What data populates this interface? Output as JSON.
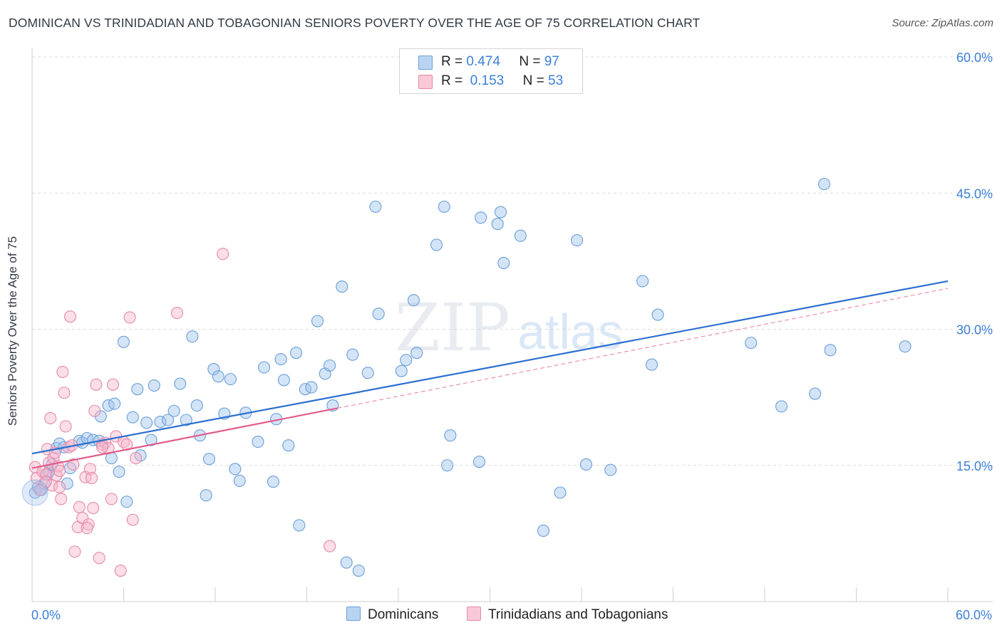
{
  "title": "DOMINICAN VS TRINIDADIAN AND TOBAGONIAN SENIORS POVERTY OVER THE AGE OF 75 CORRELATION CHART",
  "source": "Source: ZipAtlas.com",
  "watermark": {
    "zip": "ZIP",
    "atlas": "atlas"
  },
  "legend": {
    "rows": [
      {
        "r_label": "R =",
        "r_value": "0.474",
        "n_label": "N =",
        "n_value": "97",
        "color": "#9fc4ee",
        "border": "#6a9fd8"
      },
      {
        "r_label": "R =",
        "r_value": "0.153",
        "n_label": "N =",
        "n_value": "53",
        "color": "#f7b6cb",
        "border": "#e58aa8"
      }
    ]
  },
  "bottom_legend": [
    {
      "label": "Dominicans",
      "color": "#b9d4f3",
      "border": "#6a9fd8"
    },
    {
      "label": "Trinidadians and Tobagonians",
      "color": "#f9c9d8",
      "border": "#e58aa8"
    }
  ],
  "chart_data": {
    "type": "scatter",
    "title": "DOMINICAN VS TRINIDADIAN AND TOBAGONIAN SENIORS POVERTY OVER THE AGE OF 75 CORRELATION CHART",
    "xlabel": "",
    "ylabel": "Seniors Poverty Over the Age of 75",
    "xlim": [
      0,
      60
    ],
    "ylim": [
      0,
      60
    ],
    "x_tick_labels": [
      {
        "value": 0,
        "label": "0.0%"
      },
      {
        "value": 60,
        "label": "60.0%"
      }
    ],
    "y_tick_labels": [
      {
        "value": 15,
        "label": "15.0%"
      },
      {
        "value": 30,
        "label": "30.0%"
      },
      {
        "value": 45,
        "label": "45.0%"
      },
      {
        "value": 60,
        "label": "60.0%"
      }
    ],
    "series": [
      {
        "name": "Dominicans",
        "color": "#6a9fd8",
        "fill": "rgba(160,196,238,0.45)",
        "trend": {
          "x": [
            0,
            60
          ],
          "y": [
            16.3,
            35.3
          ],
          "style": "solid",
          "color": "#2b6fd0"
        },
        "points": [
          [
            0.2,
            12.0
          ],
          [
            0.4,
            12.6
          ],
          [
            0.6,
            12.3
          ],
          [
            0.8,
            13.0
          ],
          [
            1.0,
            14.0
          ],
          [
            1.1,
            14.3
          ],
          [
            1.3,
            15.1
          ],
          [
            1.6,
            16.9
          ],
          [
            1.8,
            17.4
          ],
          [
            2.1,
            17.0
          ],
          [
            2.3,
            13.0
          ],
          [
            2.5,
            14.7
          ],
          [
            3.1,
            17.7
          ],
          [
            3.3,
            17.5
          ],
          [
            3.6,
            18.0
          ],
          [
            4.0,
            17.8
          ],
          [
            4.4,
            17.7
          ],
          [
            4.5,
            20.4
          ],
          [
            5.0,
            21.6
          ],
          [
            5.2,
            15.8
          ],
          [
            5.4,
            21.8
          ],
          [
            5.7,
            14.3
          ],
          [
            6.0,
            28.6
          ],
          [
            6.2,
            11.0
          ],
          [
            6.6,
            20.3
          ],
          [
            6.9,
            23.4
          ],
          [
            7.1,
            16.1
          ],
          [
            7.5,
            19.7
          ],
          [
            7.8,
            17.8
          ],
          [
            8.0,
            23.8
          ],
          [
            8.4,
            19.8
          ],
          [
            8.9,
            20.0
          ],
          [
            9.3,
            21.0
          ],
          [
            9.7,
            24.0
          ],
          [
            10.1,
            20.0
          ],
          [
            10.5,
            29.2
          ],
          [
            10.8,
            21.6
          ],
          [
            11.0,
            18.3
          ],
          [
            11.4,
            11.7
          ],
          [
            11.6,
            15.7
          ],
          [
            11.9,
            25.6
          ],
          [
            12.2,
            24.8
          ],
          [
            12.6,
            20.7
          ],
          [
            13.0,
            24.5
          ],
          [
            13.3,
            14.6
          ],
          [
            13.6,
            13.3
          ],
          [
            14.0,
            20.8
          ],
          [
            14.8,
            17.6
          ],
          [
            15.2,
            25.8
          ],
          [
            15.8,
            13.2
          ],
          [
            16.0,
            20.1
          ],
          [
            16.3,
            26.7
          ],
          [
            16.8,
            17.2
          ],
          [
            17.3,
            27.4
          ],
          [
            17.5,
            8.4
          ],
          [
            17.9,
            23.4
          ],
          [
            18.3,
            23.6
          ],
          [
            18.7,
            30.9
          ],
          [
            19.2,
            25.1
          ],
          [
            19.5,
            26.0
          ],
          [
            19.7,
            21.6
          ],
          [
            20.3,
            34.7
          ],
          [
            20.6,
            4.3
          ],
          [
            21.0,
            27.2
          ],
          [
            21.4,
            3.4
          ],
          [
            22.0,
            25.2
          ],
          [
            22.5,
            43.5
          ],
          [
            22.7,
            31.7
          ],
          [
            24.2,
            25.4
          ],
          [
            24.5,
            26.6
          ],
          [
            25.0,
            33.2
          ],
          [
            25.2,
            27.4
          ],
          [
            26.5,
            39.3
          ],
          [
            27.0,
            43.5
          ],
          [
            27.2,
            15.0
          ],
          [
            27.4,
            18.3
          ],
          [
            29.3,
            15.4
          ],
          [
            29.4,
            42.3
          ],
          [
            30.5,
            41.6
          ],
          [
            30.7,
            42.9
          ],
          [
            30.9,
            37.3
          ],
          [
            33.5,
            7.8
          ],
          [
            34.6,
            12.0
          ],
          [
            35.7,
            39.8
          ],
          [
            36.3,
            15.1
          ],
          [
            37.9,
            14.5
          ],
          [
            40.0,
            35.3
          ],
          [
            40.6,
            26.1
          ],
          [
            41.0,
            31.6
          ],
          [
            47.1,
            28.5
          ],
          [
            49.1,
            21.5
          ],
          [
            51.3,
            22.9
          ],
          [
            51.9,
            46.0
          ],
          [
            52.3,
            27.7
          ],
          [
            57.2,
            28.1
          ],
          [
            32.0,
            40.3
          ],
          [
            16.5,
            24.4
          ]
        ]
      },
      {
        "name": "Trinidadians and Tobagonians",
        "color": "#e58aa8",
        "fill": "rgba(247,182,203,0.45)",
        "trend": {
          "x": [
            0,
            20
          ],
          "y": [
            14.7,
            21.3
          ],
          "style": "solid",
          "color": "#e25b8b",
          "ext": {
            "x": [
              20,
              60
            ],
            "y": [
              21.3,
              34.5
            ],
            "style": "dashed"
          }
        },
        "points": [
          [
            0.2,
            14.8
          ],
          [
            0.3,
            13.6
          ],
          [
            0.5,
            12.3
          ],
          [
            0.7,
            14.3
          ],
          [
            0.9,
            14.0
          ],
          [
            1.0,
            16.8
          ],
          [
            1.1,
            15.3
          ],
          [
            1.2,
            20.2
          ],
          [
            1.3,
            12.8
          ],
          [
            1.4,
            15.8
          ],
          [
            1.5,
            16.4
          ],
          [
            1.6,
            13.9
          ],
          [
            1.7,
            14.9
          ],
          [
            1.8,
            12.6
          ],
          [
            1.9,
            11.3
          ],
          [
            2.0,
            25.3
          ],
          [
            2.1,
            23.0
          ],
          [
            2.2,
            19.3
          ],
          [
            2.4,
            17.0
          ],
          [
            2.5,
            31.4
          ],
          [
            2.7,
            15.1
          ],
          [
            2.8,
            5.5
          ],
          [
            3.0,
            8.2
          ],
          [
            3.1,
            10.4
          ],
          [
            3.3,
            9.2
          ],
          [
            3.5,
            13.7
          ],
          [
            3.7,
            8.5
          ],
          [
            3.8,
            14.6
          ],
          [
            3.9,
            13.6
          ],
          [
            4.0,
            10.3
          ],
          [
            4.1,
            21.0
          ],
          [
            4.2,
            23.9
          ],
          [
            4.4,
            4.8
          ],
          [
            4.6,
            17.3
          ],
          [
            4.8,
            17.5
          ],
          [
            5.0,
            16.9
          ],
          [
            5.2,
            11.3
          ],
          [
            5.3,
            23.9
          ],
          [
            5.5,
            18.2
          ],
          [
            5.8,
            3.4
          ],
          [
            6.0,
            17.6
          ],
          [
            6.2,
            17.3
          ],
          [
            6.4,
            31.3
          ],
          [
            6.6,
            9.0
          ],
          [
            6.8,
            15.8
          ],
          [
            9.5,
            31.8
          ],
          [
            12.5,
            38.3
          ],
          [
            3.6,
            8.1
          ],
          [
            2.6,
            17.2
          ],
          [
            0.9,
            13.2
          ],
          [
            19.5,
            6.1
          ],
          [
            1.8,
            14.4
          ],
          [
            4.6,
            17.0
          ]
        ]
      }
    ],
    "legend_position": "top-center"
  }
}
